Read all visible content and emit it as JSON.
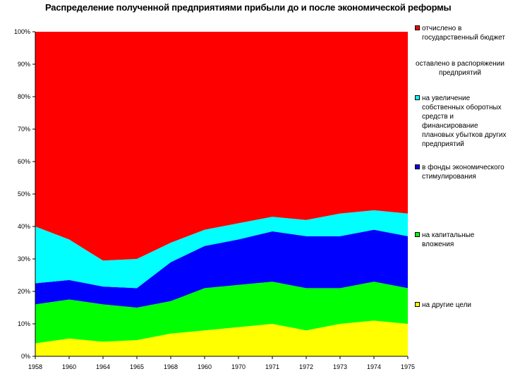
{
  "chart_data": {
    "type": "area",
    "stacked": true,
    "percent": true,
    "title": "Распределение полученной предприятиями прибыли до и после экономической реформы",
    "xlabel": "",
    "ylabel": "",
    "ylim": [
      0,
      100
    ],
    "y_ticks": [
      "0%",
      "10%",
      "20%",
      "30%",
      "40%",
      "50%",
      "60%",
      "70%",
      "80%",
      "90%",
      "100%"
    ],
    "categories": [
      "1958",
      "1960",
      "1964",
      "1965",
      "1968",
      "1960",
      "1970",
      "1971",
      "1972",
      "1973",
      "1974",
      "1975"
    ],
    "legend_position": "right",
    "series": [
      {
        "name": "на другие цели",
        "color": "#ffff00",
        "values": [
          4,
          5.5,
          4.5,
          5,
          7,
          8,
          9,
          10,
          8,
          10,
          11,
          10
        ]
      },
      {
        "name": "на капитальные вложения",
        "color": "#00ff00",
        "values": [
          12,
          12,
          11.5,
          10,
          10,
          13,
          13,
          13,
          13,
          11,
          12,
          11
        ]
      },
      {
        "name": "в фонды экономического стимулирования",
        "color": "#0000ff",
        "values": [
          6.5,
          6,
          5.5,
          6,
          12,
          13,
          14,
          15.5,
          16,
          16,
          16,
          16
        ]
      },
      {
        "name": "на увеличение собственных оборотных средств и финансирование плановых убытков других предприятий",
        "color": "#00ffff",
        "values": [
          17.5,
          12.5,
          8,
          9,
          6,
          5,
          5,
          4.5,
          5,
          7,
          6,
          7
        ]
      },
      {
        "name": "оставлено в распоряжении предприятий",
        "color": "#ff00ff",
        "values": [
          0,
          0,
          0,
          0,
          0,
          0,
          0,
          0,
          0,
          0,
          0,
          0
        ]
      },
      {
        "name": "отчислено в государственный бюджет",
        "color": "#ff0000",
        "values": [
          60,
          64,
          70.5,
          70,
          65,
          61,
          59,
          57,
          58,
          56,
          55,
          56
        ]
      }
    ],
    "legend": [
      {
        "text": "отчислено в государственный бюджет",
        "color": "#ff0000"
      },
      {
        "text": "оставлено в распоряжении предприятий",
        "color": "#ff00ff"
      },
      {
        "text": "на увеличение собственных оборотных средств и финансирование плановых убытков других предприятий",
        "color": "#00ffff"
      },
      {
        "text": "в фонды экономического стимулирования",
        "color": "#0000ff"
      },
      {
        "text": "на капитальные вложения",
        "color": "#00ff00"
      },
      {
        "text": "на другие цели",
        "color": "#ffff00"
      }
    ]
  }
}
